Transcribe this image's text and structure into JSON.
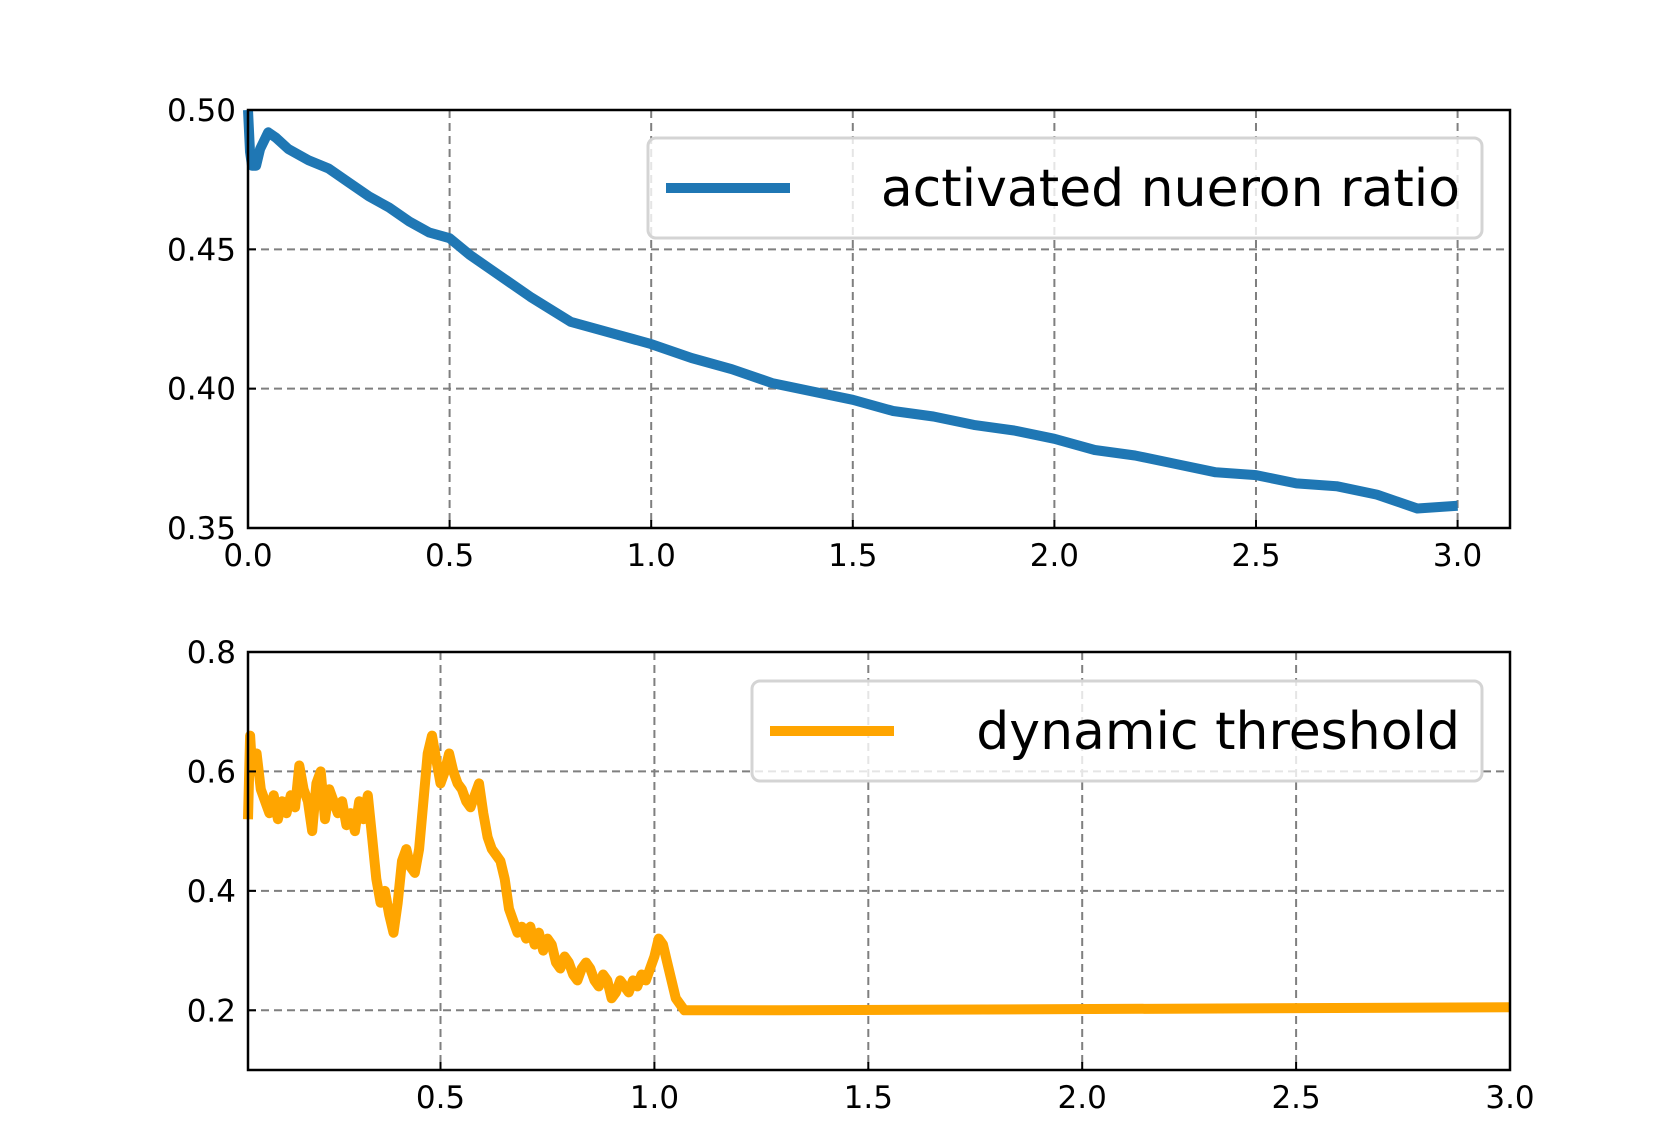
{
  "chart_data": [
    {
      "type": "line",
      "legend_position": "top-right",
      "grid": true,
      "xlim": [
        0.0,
        3.13
      ],
      "ylim": [
        0.35,
        0.5
      ],
      "x_ticks": [
        "0.0",
        "0.5",
        "1.0",
        "1.5",
        "2.0",
        "2.5",
        "3.0"
      ],
      "x_tick_values": [
        0.0,
        0.5,
        1.0,
        1.5,
        2.0,
        2.5,
        3.0
      ],
      "y_ticks": [
        "0.35",
        "0.40",
        "0.45",
        "0.50"
      ],
      "y_tick_values": [
        0.35,
        0.4,
        0.45,
        0.5
      ],
      "series": [
        {
          "name": "activated nueron ratio",
          "color": "#1f77b4",
          "x": [
            0.0,
            0.005,
            0.01,
            0.02,
            0.03,
            0.05,
            0.07,
            0.1,
            0.15,
            0.2,
            0.25,
            0.3,
            0.35,
            0.4,
            0.45,
            0.5,
            0.55,
            0.6,
            0.7,
            0.8,
            0.9,
            1.0,
            1.1,
            1.2,
            1.3,
            1.4,
            1.5,
            1.6,
            1.7,
            1.8,
            1.9,
            2.0,
            2.1,
            2.2,
            2.3,
            2.4,
            2.5,
            2.6,
            2.7,
            2.8,
            2.9,
            3.0
          ],
          "y": [
            0.5,
            0.485,
            0.48,
            0.48,
            0.486,
            0.492,
            0.49,
            0.486,
            0.482,
            0.479,
            0.474,
            0.469,
            0.465,
            0.46,
            0.456,
            0.454,
            0.448,
            0.443,
            0.433,
            0.424,
            0.42,
            0.416,
            0.411,
            0.407,
            0.402,
            0.399,
            0.396,
            0.392,
            0.39,
            0.387,
            0.385,
            0.382,
            0.378,
            0.376,
            0.373,
            0.37,
            0.369,
            0.366,
            0.365,
            0.362,
            0.357,
            0.358
          ]
        }
      ]
    },
    {
      "type": "line",
      "legend_position": "top-right",
      "grid": true,
      "xlim": [
        0.05,
        3.0
      ],
      "ylim": [
        0.1,
        0.8
      ],
      "x_ticks": [
        "0.5",
        "1.0",
        "1.5",
        "2.0",
        "2.5",
        "3.0"
      ],
      "x_tick_values": [
        0.5,
        1.0,
        1.5,
        2.0,
        2.5,
        3.0
      ],
      "y_ticks": [
        "0.2",
        "0.4",
        "0.6",
        "0.8"
      ],
      "y_tick_values": [
        0.2,
        0.4,
        0.6,
        0.8
      ],
      "series": [
        {
          "name": "dynamic threshold",
          "color": "#ffa500",
          "x": [
            0.05,
            0.055,
            0.06,
            0.07,
            0.08,
            0.09,
            0.1,
            0.11,
            0.12,
            0.13,
            0.14,
            0.15,
            0.16,
            0.17,
            0.18,
            0.19,
            0.2,
            0.21,
            0.22,
            0.23,
            0.24,
            0.25,
            0.26,
            0.27,
            0.28,
            0.29,
            0.3,
            0.31,
            0.32,
            0.33,
            0.34,
            0.35,
            0.36,
            0.37,
            0.38,
            0.39,
            0.4,
            0.41,
            0.42,
            0.43,
            0.44,
            0.45,
            0.46,
            0.47,
            0.48,
            0.49,
            0.5,
            0.51,
            0.52,
            0.53,
            0.54,
            0.55,
            0.56,
            0.57,
            0.58,
            0.59,
            0.6,
            0.61,
            0.62,
            0.63,
            0.64,
            0.65,
            0.66,
            0.67,
            0.68,
            0.69,
            0.7,
            0.71,
            0.72,
            0.73,
            0.74,
            0.75,
            0.76,
            0.77,
            0.78,
            0.79,
            0.8,
            0.81,
            0.82,
            0.83,
            0.84,
            0.85,
            0.86,
            0.87,
            0.88,
            0.89,
            0.9,
            0.91,
            0.92,
            0.93,
            0.94,
            0.95,
            0.96,
            0.97,
            0.98,
            0.99,
            1.0,
            1.01,
            1.02,
            1.03,
            1.04,
            1.05,
            1.06,
            1.07,
            1.08,
            1.09,
            1.1,
            1.11,
            1.12,
            1.13,
            1.14,
            1.15,
            1.16,
            1.17,
            1.18,
            1.19,
            1.2,
            1.21,
            1.22,
            1.23,
            1.24,
            1.25,
            1.26,
            1.27,
            1.28,
            1.3,
            3.0
          ],
          "y": [
            0.52,
            0.66,
            0.6,
            0.63,
            0.57,
            0.55,
            0.53,
            0.56,
            0.52,
            0.55,
            0.53,
            0.56,
            0.54,
            0.61,
            0.57,
            0.55,
            0.5,
            0.58,
            0.6,
            0.52,
            0.57,
            0.55,
            0.53,
            0.55,
            0.51,
            0.53,
            0.5,
            0.55,
            0.52,
            0.56,
            0.49,
            0.42,
            0.38,
            0.4,
            0.36,
            0.33,
            0.38,
            0.45,
            0.47,
            0.44,
            0.43,
            0.47,
            0.55,
            0.63,
            0.66,
            0.62,
            0.58,
            0.6,
            0.63,
            0.6,
            0.58,
            0.57,
            0.55,
            0.54,
            0.56,
            0.58,
            0.53,
            0.49,
            0.47,
            0.46,
            0.45,
            0.42,
            0.37,
            0.35,
            0.33,
            0.34,
            0.32,
            0.34,
            0.31,
            0.33,
            0.3,
            0.32,
            0.31,
            0.28,
            0.27,
            0.29,
            0.28,
            0.26,
            0.25,
            0.27,
            0.28,
            0.27,
            0.25,
            0.24,
            0.26,
            0.25,
            0.22,
            0.23,
            0.25,
            0.24,
            0.23,
            0.25,
            0.24,
            0.26,
            0.25,
            0.27,
            0.29,
            0.32,
            0.31,
            0.28,
            0.25,
            0.22,
            0.21,
            0.2,
            0.2,
            0.2,
            0.2,
            0.2,
            0.2,
            0.2,
            0.2,
            0.2,
            0.2,
            0.2,
            0.2,
            0.2,
            0.2,
            0.2,
            0.2,
            0.2,
            0.2,
            0.2,
            0.2,
            0.2,
            0.2,
            0.2,
            0.205
          ]
        }
      ]
    }
  ]
}
